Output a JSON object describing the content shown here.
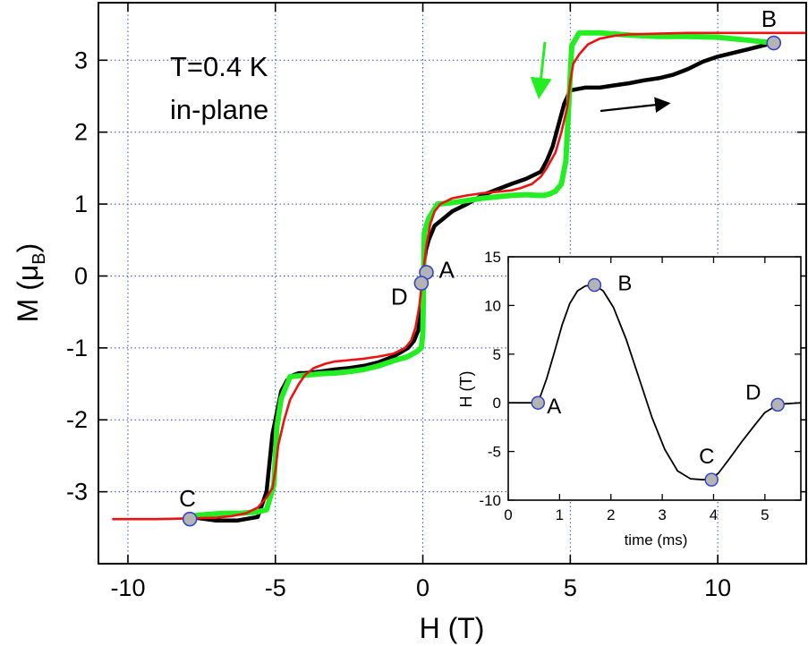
{
  "chart_data": [
    {
      "type": "line",
      "title": "",
      "annotations": [
        "T=0.4 K",
        "in-plane"
      ],
      "xlabel": "H (T)",
      "ylabel_main": "M (",
      "ylabel_mu": "μ",
      "ylabel_sub": "B",
      "ylabel_close": ")",
      "xlim": [
        -11,
        13
      ],
      "ylim": [
        -4,
        3.8
      ],
      "xticks": [
        -10,
        -5,
        0,
        5,
        10
      ],
      "xtick_labels": [
        "-10",
        "-5",
        "0",
        "5",
        "10"
      ],
      "yticks": [
        -3,
        -2,
        -1,
        0,
        1,
        2,
        3
      ],
      "ytick_labels": [
        "-3",
        "-2",
        "-1",
        "0",
        "1",
        "2",
        "3"
      ],
      "grid": true,
      "colors": {
        "sweep_up": "#000000",
        "sweep_down": "#22ee22",
        "fit": "#ee1111",
        "marker_fill": "#b4b4b4",
        "marker_edge": "#3344cc",
        "grid": "#3344cc"
      },
      "series": [
        {
          "id": "up",
          "x": [
            -7.9,
            -7,
            -6.3,
            -5.6,
            -5.3,
            -5.1,
            -4.95,
            -4.8,
            -4.6,
            -4.4,
            -4.2,
            -4,
            -3.5,
            -3,
            -2.5,
            -2,
            -1.5,
            -1,
            -0.5,
            -0.3,
            -0.15,
            -0.05,
            0,
            0.05,
            0.1,
            0.2,
            0.4,
            0.7,
            1,
            1.5,
            2,
            2.5,
            3,
            3.5,
            4,
            4.2,
            4.4,
            4.6,
            4.8,
            5,
            5.5,
            6,
            6.5,
            7,
            7.5,
            8,
            8.5,
            9,
            9.5,
            10,
            10.5,
            11,
            11.5,
            11.9
          ],
          "y": [
            -3.35,
            -3.4,
            -3.4,
            -3.35,
            -3.0,
            -2.2,
            -1.9,
            -1.6,
            -1.45,
            -1.38,
            -1.35,
            -1.35,
            -1.33,
            -1.3,
            -1.28,
            -1.25,
            -1.2,
            -1.12,
            -1.0,
            -0.9,
            -0.75,
            -0.4,
            0,
            0.2,
            0.35,
            0.5,
            0.7,
            0.8,
            0.9,
            1.0,
            1.12,
            1.2,
            1.28,
            1.35,
            1.45,
            1.6,
            1.8,
            2.1,
            2.4,
            2.58,
            2.62,
            2.62,
            2.65,
            2.68,
            2.72,
            2.75,
            2.8,
            2.88,
            2.98,
            3.05,
            3.1,
            3.15,
            3.2,
            3.24
          ]
        },
        {
          "id": "down",
          "x": [
            11.9,
            11,
            10,
            9,
            8,
            7,
            6,
            5.3,
            5.05,
            4.95,
            4.85,
            4.7,
            4.5,
            4.3,
            4.1,
            3.9,
            3.5,
            3,
            2.5,
            2,
            1.5,
            1,
            0.5,
            0.2,
            0.05,
            0,
            -0.05,
            -0.2,
            -0.5,
            -1,
            -1.5,
            -2,
            -2.5,
            -3,
            -3.5,
            -4,
            -4.5,
            -4.8,
            -4.95,
            -5.05,
            -5.3,
            -5.6,
            -6.2,
            -6.8,
            -7.4,
            -7.9
          ],
          "y": [
            3.24,
            3.28,
            3.32,
            3.33,
            3.33,
            3.35,
            3.38,
            3.38,
            3.2,
            2.4,
            1.6,
            1.28,
            1.18,
            1.14,
            1.12,
            1.12,
            1.13,
            1.12,
            1.1,
            1.08,
            1.05,
            1.02,
            1.0,
            0.8,
            0.6,
            -0.8,
            -1.0,
            -1.05,
            -1.12,
            -1.18,
            -1.25,
            -1.3,
            -1.33,
            -1.35,
            -1.36,
            -1.38,
            -1.4,
            -1.7,
            -2.1,
            -2.9,
            -3.25,
            -3.28,
            -3.3,
            -3.3,
            -3.32,
            -3.34
          ]
        },
        {
          "id": "fit",
          "x": [
            -10.5,
            -9,
            -8,
            -7,
            -6.5,
            -6,
            -5.6,
            -5.3,
            -5.1,
            -5,
            -4.9,
            -4.7,
            -4.5,
            -4.2,
            -4,
            -3.7,
            -3.3,
            -3,
            -2.5,
            -2,
            -1.5,
            -1,
            -0.6,
            -0.4,
            -0.25,
            -0.12,
            0,
            0.12,
            0.25,
            0.4,
            0.6,
            1,
            1.5,
            2,
            2.5,
            3,
            3.3,
            3.7,
            4,
            4.2,
            4.5,
            4.7,
            4.9,
            5,
            5.1,
            5.3,
            5.6,
            6,
            6.5,
            7,
            8,
            9,
            10,
            11,
            12,
            13
          ],
          "y": [
            -3.38,
            -3.38,
            -3.37,
            -3.36,
            -3.34,
            -3.3,
            -3.22,
            -3.08,
            -2.95,
            -2.7,
            -2.35,
            -2.0,
            -1.72,
            -1.5,
            -1.38,
            -1.28,
            -1.22,
            -1.19,
            -1.17,
            -1.15,
            -1.12,
            -1.08,
            -1.0,
            -0.9,
            -0.72,
            -0.42,
            0,
            0.42,
            0.72,
            0.9,
            1.0,
            1.08,
            1.12,
            1.15,
            1.17,
            1.19,
            1.22,
            1.28,
            1.38,
            1.5,
            1.72,
            2.0,
            2.35,
            2.7,
            2.95,
            3.08,
            3.22,
            3.3,
            3.34,
            3.36,
            3.37,
            3.38,
            3.38,
            3.38,
            3.38,
            3.38
          ]
        }
      ],
      "markers": [
        {
          "label": "B",
          "x": 11.9,
          "y": 3.24
        },
        {
          "label": "A",
          "x": 0.12,
          "y": 0.05
        },
        {
          "label": "D",
          "x": -0.05,
          "y": -0.1
        },
        {
          "label": "C",
          "x": -7.9,
          "y": -3.38
        }
      ]
    },
    {
      "type": "line",
      "title": "",
      "xlabel": "time (ms)",
      "ylabel": "H (T)",
      "xlim": [
        0,
        5.7
      ],
      "ylim": [
        -10,
        15
      ],
      "xticks": [
        0,
        1,
        2,
        3,
        4,
        5
      ],
      "xtick_labels": [
        "0",
        "1",
        "2",
        "3",
        "4",
        "5"
      ],
      "yticks": [
        -10,
        -5,
        0,
        5,
        10,
        15
      ],
      "ytick_labels": [
        "-10",
        "-5",
        "0",
        "5",
        "10",
        "15"
      ],
      "grid": false,
      "series": [
        {
          "id": "pulse",
          "x": [
            0,
            0.58,
            0.75,
            0.9,
            1.05,
            1.2,
            1.35,
            1.5,
            1.68,
            1.85,
            2.05,
            2.3,
            2.55,
            2.8,
            3.05,
            3.3,
            3.55,
            3.8,
            3.96,
            4.1,
            4.3,
            4.55,
            4.8,
            5.0,
            5.25,
            5.4,
            5.7
          ],
          "y": [
            0,
            0,
            2.5,
            5.2,
            8.0,
            10.2,
            11.5,
            12.0,
            12.1,
            11.5,
            9.8,
            6.5,
            2.5,
            -1.5,
            -4.8,
            -7.0,
            -7.8,
            -7.9,
            -7.8,
            -7.2,
            -5.8,
            -4.0,
            -2.3,
            -1.0,
            -0.2,
            -0.1,
            0
          ]
        }
      ],
      "markers": [
        {
          "label": "A",
          "x": 0.58,
          "y": 0
        },
        {
          "label": "B",
          "x": 1.68,
          "y": 12.1
        },
        {
          "label": "C",
          "x": 3.96,
          "y": -7.9
        },
        {
          "label": "D",
          "x": 5.25,
          "y": -0.2
        }
      ]
    }
  ]
}
